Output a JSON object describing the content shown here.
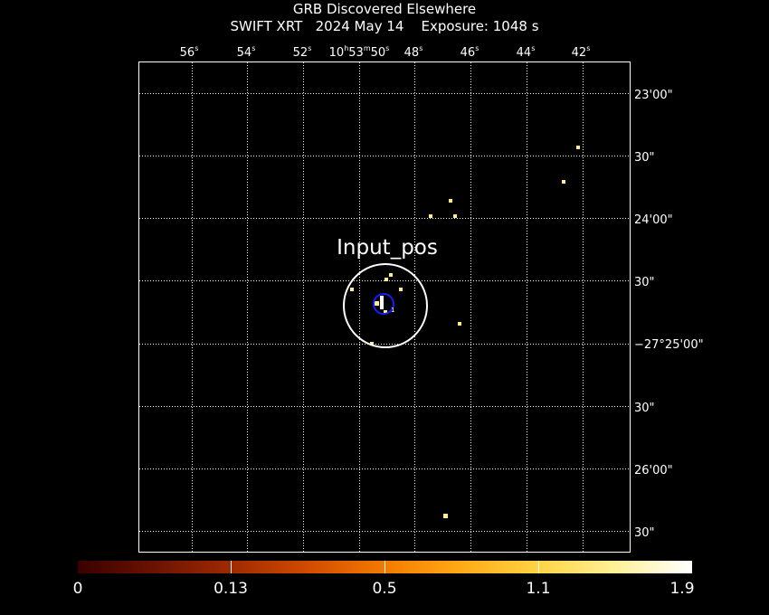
{
  "header": {
    "title": "GRB Discovered Elsewhere",
    "subtitle": "SWIFT XRT   2024 May 14    Exposure: 1048 s"
  },
  "axes": {
    "ra_ticks": [
      {
        "main": "56",
        "sup": "s"
      },
      {
        "main": "54",
        "sup": "s"
      },
      {
        "main": "52",
        "sup": "s"
      },
      {
        "main": "10",
        "sup": "h",
        "main2": "53",
        "sup2": "m",
        "main3": "50",
        "sup3": "s"
      },
      {
        "main": "48",
        "sup": "s"
      },
      {
        "main": "46",
        "sup": "s"
      },
      {
        "main": "44",
        "sup": "s"
      },
      {
        "main": "42",
        "sup": "s"
      }
    ],
    "dec_ticks": [
      "23'00\"",
      "30\"",
      "24'00\"",
      "30\"",
      "−27°25'00\"",
      "30\"",
      "26'00\"",
      "30\""
    ]
  },
  "annotations": {
    "region_label": "Input_pos",
    "source_marker": "1"
  },
  "colorbar": {
    "labels": [
      "0",
      "0.13",
      "0.5",
      "1.1",
      "1.9"
    ]
  },
  "colors": {
    "background": "#000000",
    "grid": "#ffffff",
    "circle_input": "#ffffff",
    "circle_source": "#1a1aff",
    "photon": "#ffee88"
  }
}
